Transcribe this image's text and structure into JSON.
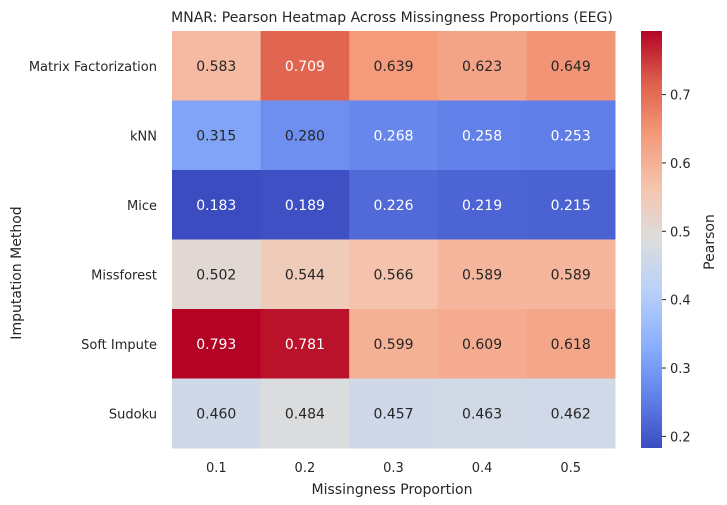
{
  "chart_data": {
    "type": "heatmap",
    "title": "MNAR: Pearson Heatmap Across Missingness Proportions (EEG)",
    "xlabel": "Missingness Proportion",
    "ylabel": "Imputation Method",
    "x_categories": [
      "0.1",
      "0.2",
      "0.3",
      "0.4",
      "0.5"
    ],
    "y_categories": [
      "Matrix Factorization",
      "kNN",
      "Mice",
      "Missforest",
      "Soft Impute",
      "Sudoku"
    ],
    "values": [
      [
        0.583,
        0.709,
        0.639,
        0.623,
        0.649
      ],
      [
        0.315,
        0.28,
        0.268,
        0.258,
        0.253
      ],
      [
        0.183,
        0.189,
        0.226,
        0.219,
        0.215
      ],
      [
        0.502,
        0.544,
        0.566,
        0.589,
        0.589
      ],
      [
        0.793,
        0.781,
        0.599,
        0.609,
        0.618
      ],
      [
        0.46,
        0.484,
        0.457,
        0.463,
        0.462
      ]
    ],
    "value_format": "0.000",
    "colormap": "coolwarm",
    "colorbar": {
      "label": "Pearson",
      "range": [
        0.183,
        0.793
      ],
      "ticks": [
        "0.2",
        "0.3",
        "0.4",
        "0.5",
        "0.6",
        "0.7"
      ],
      "tick_values": [
        0.2,
        0.3,
        0.4,
        0.5,
        0.6,
        0.7
      ]
    },
    "grid": false
  }
}
